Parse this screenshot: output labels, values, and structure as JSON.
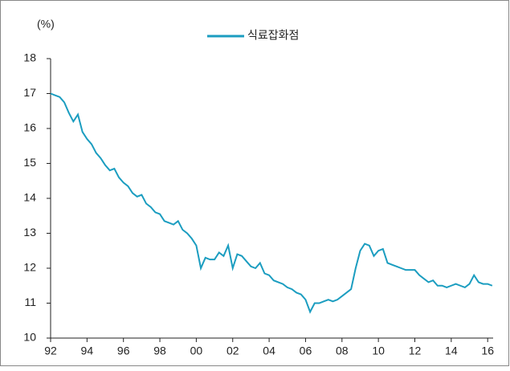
{
  "chart_data": {
    "type": "line",
    "ylabel": "(%)",
    "x": [
      1992,
      1992.25,
      1992.5,
      1992.75,
      1993,
      1993.25,
      1993.5,
      1993.75,
      1994,
      1994.25,
      1994.5,
      1994.75,
      1995,
      1995.25,
      1995.5,
      1995.75,
      1996,
      1996.25,
      1996.5,
      1996.75,
      1997,
      1997.25,
      1997.5,
      1997.75,
      1998,
      1998.25,
      1998.5,
      1998.75,
      1999,
      1999.25,
      1999.5,
      1999.75,
      2000,
      2000.25,
      2000.5,
      2000.75,
      2001,
      2001.25,
      2001.5,
      2001.75,
      2002,
      2002.25,
      2002.5,
      2002.75,
      2003,
      2003.25,
      2003.5,
      2003.75,
      2004,
      2004.25,
      2004.5,
      2004.75,
      2005,
      2005.25,
      2005.5,
      2005.75,
      2006,
      2006.25,
      2006.5,
      2006.75,
      2007,
      2007.25,
      2007.5,
      2007.75,
      2008,
      2008.25,
      2008.5,
      2008.75,
      2009,
      2009.25,
      2009.5,
      2009.75,
      2010,
      2010.25,
      2010.5,
      2010.75,
      2011,
      2011.25,
      2011.5,
      2011.75,
      2012,
      2012.25,
      2012.5,
      2012.75,
      2013,
      2013.25,
      2013.5,
      2013.75,
      2014,
      2014.25,
      2014.5,
      2014.75,
      2015,
      2015.25,
      2015.5,
      2015.75,
      2016,
      2016.25
    ],
    "series": [
      {
        "name": "식료잡화점",
        "color": "#1b9dc0",
        "values": [
          17.0,
          16.95,
          16.9,
          16.75,
          16.45,
          16.2,
          16.4,
          15.9,
          15.7,
          15.55,
          15.3,
          15.15,
          14.95,
          14.8,
          14.85,
          14.6,
          14.45,
          14.35,
          14.15,
          14.05,
          14.1,
          13.85,
          13.75,
          13.6,
          13.55,
          13.35,
          13.3,
          13.25,
          13.35,
          13.1,
          13.0,
          12.85,
          12.65,
          12.0,
          12.3,
          12.25,
          12.25,
          12.45,
          12.35,
          12.65,
          12.0,
          12.4,
          12.35,
          12.2,
          12.05,
          12.0,
          12.15,
          11.85,
          11.8,
          11.65,
          11.6,
          11.55,
          11.45,
          11.4,
          11.3,
          11.25,
          11.1,
          10.75,
          11.0,
          11.0,
          11.05,
          11.1,
          11.05,
          11.1,
          11.2,
          11.3,
          11.4,
          12.0,
          12.5,
          12.7,
          12.65,
          12.35,
          12.5,
          12.55,
          12.15,
          12.1,
          12.05,
          12.0,
          11.95,
          11.95,
          11.95,
          11.8,
          11.7,
          11.6,
          11.65,
          11.5,
          11.5,
          11.45,
          11.5,
          11.55,
          11.5,
          11.45,
          11.55,
          11.8,
          11.6,
          11.55,
          11.55,
          11.5
        ]
      }
    ],
    "xlim": [
      1992,
      2016.3
    ],
    "xticks": [
      {
        "value": 1992,
        "label": "92"
      },
      {
        "value": 1994,
        "label": "94"
      },
      {
        "value": 1996,
        "label": "96"
      },
      {
        "value": 1998,
        "label": "98"
      },
      {
        "value": 2000,
        "label": "00"
      },
      {
        "value": 2002,
        "label": "02"
      },
      {
        "value": 2004,
        "label": "04"
      },
      {
        "value": 2006,
        "label": "06"
      },
      {
        "value": 2008,
        "label": "08"
      },
      {
        "value": 2010,
        "label": "10"
      },
      {
        "value": 2012,
        "label": "12"
      },
      {
        "value": 2014,
        "label": "14"
      },
      {
        "value": 2016,
        "label": "16"
      }
    ],
    "ylim": [
      10,
      18
    ],
    "yticks": [
      10,
      11,
      12,
      13,
      14,
      15,
      16,
      17,
      18
    ],
    "grid": false,
    "legend": "top"
  }
}
